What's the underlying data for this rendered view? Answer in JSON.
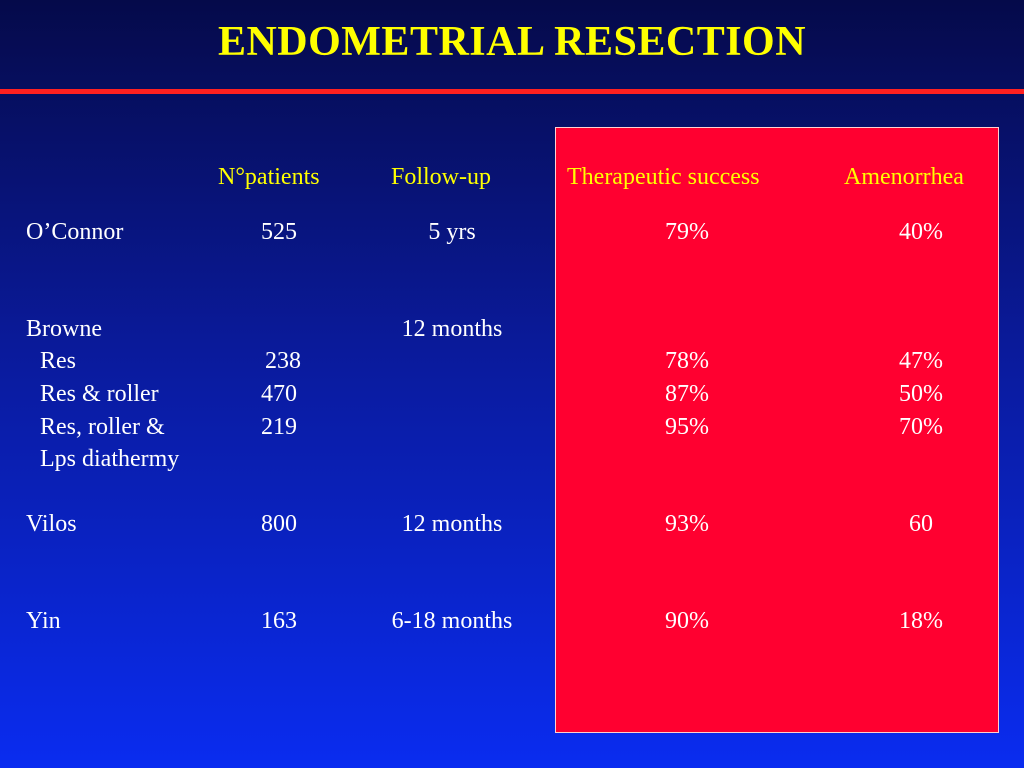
{
  "title": "ENDOMETRIAL RESECTION",
  "headers": {
    "patients": "N°patients",
    "followup": "Follow-up",
    "success": "Therapeutic success",
    "amenorrhea": "Amenorrhea"
  },
  "rows": {
    "oconnor": {
      "name": "O’Connor",
      "patients": "525",
      "followup": "5 yrs",
      "success": "79%",
      "amenorrhea": "40%"
    },
    "browne": {
      "name": "Browne",
      "followup": "12 months"
    },
    "res": {
      "name": "Res",
      "patients": "238",
      "success": "78%",
      "amenorrhea": "47%"
    },
    "res_roller": {
      "name": "Res & roller",
      "patients": "470",
      "success": "87%",
      "amenorrhea": "50%"
    },
    "res_roller_lps": {
      "name": "Res, roller &",
      "name2": "Lps diathermy",
      "patients": "219",
      "success": "95%",
      "amenorrhea": "70%"
    },
    "vilos": {
      "name": "Vilos",
      "patients": "800",
      "followup": "12 months",
      "success": "93%",
      "amenorrhea": "60"
    },
    "yin": {
      "name": "Yin",
      "patients": "163",
      "followup": "6-18 months",
      "success": "90%",
      "amenorrhea": "18%"
    }
  },
  "colors": {
    "title": "#ffff00",
    "rule": "#ff2020",
    "highlight": "#ff0030",
    "background_top": "#050a4a",
    "background_bottom": "#0a2cf0"
  }
}
